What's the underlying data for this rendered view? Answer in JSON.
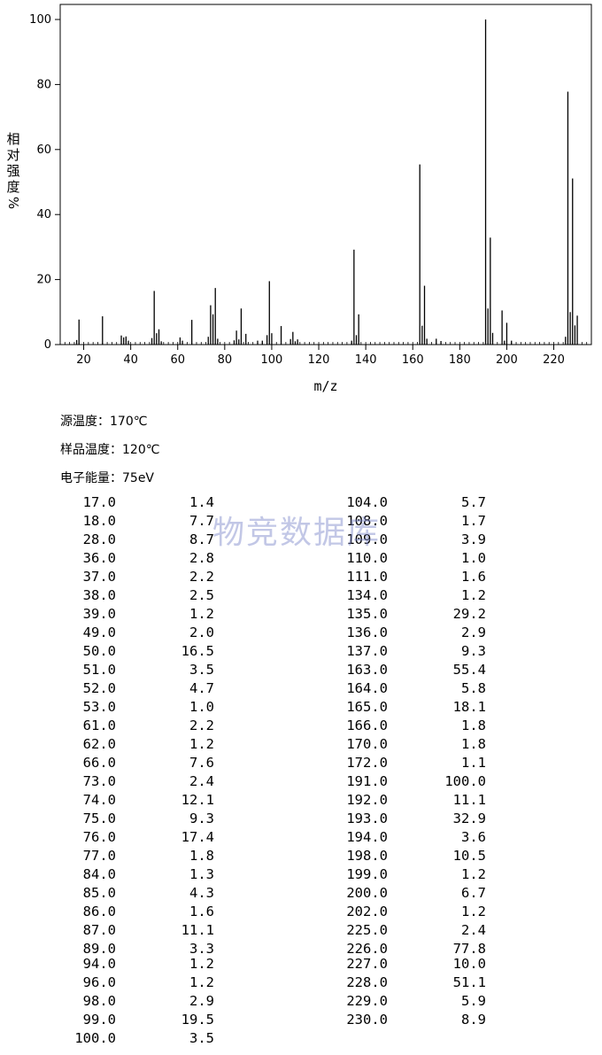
{
  "chart_data": {
    "type": "bar",
    "xlabel": "m/z",
    "ylabel": "相对强度/%",
    "ylabel_chars": [
      "相",
      "对",
      "强",
      "度",
      "%"
    ],
    "xlim": [
      10,
      236
    ],
    "ylim": [
      0,
      100
    ],
    "xticks": [
      20,
      40,
      60,
      80,
      100,
      120,
      140,
      160,
      180,
      200,
      220
    ],
    "yticks": [
      0,
      20,
      40,
      60,
      80,
      100
    ],
    "grid": false,
    "peaks": [
      {
        "mz": 17.0,
        "intensity": 1.4
      },
      {
        "mz": 18.0,
        "intensity": 7.7
      },
      {
        "mz": 28.0,
        "intensity": 8.7
      },
      {
        "mz": 36.0,
        "intensity": 2.8
      },
      {
        "mz": 37.0,
        "intensity": 2.2
      },
      {
        "mz": 38.0,
        "intensity": 2.5
      },
      {
        "mz": 39.0,
        "intensity": 1.2
      },
      {
        "mz": 49.0,
        "intensity": 2.0
      },
      {
        "mz": 50.0,
        "intensity": 16.5
      },
      {
        "mz": 51.0,
        "intensity": 3.5
      },
      {
        "mz": 52.0,
        "intensity": 4.7
      },
      {
        "mz": 53.0,
        "intensity": 1.0
      },
      {
        "mz": 61.0,
        "intensity": 2.2
      },
      {
        "mz": 62.0,
        "intensity": 1.2
      },
      {
        "mz": 66.0,
        "intensity": 7.6
      },
      {
        "mz": 73.0,
        "intensity": 2.4
      },
      {
        "mz": 74.0,
        "intensity": 12.1
      },
      {
        "mz": 75.0,
        "intensity": 9.3
      },
      {
        "mz": 76.0,
        "intensity": 17.4
      },
      {
        "mz": 77.0,
        "intensity": 1.8
      },
      {
        "mz": 84.0,
        "intensity": 1.3
      },
      {
        "mz": 85.0,
        "intensity": 4.3
      },
      {
        "mz": 86.0,
        "intensity": 1.6
      },
      {
        "mz": 87.0,
        "intensity": 11.1
      },
      {
        "mz": 89.0,
        "intensity": 3.3
      },
      {
        "mz": 94.0,
        "intensity": 1.2
      },
      {
        "mz": 96.0,
        "intensity": 1.2
      },
      {
        "mz": 98.0,
        "intensity": 2.9
      },
      {
        "mz": 99.0,
        "intensity": 19.5
      },
      {
        "mz": 100.0,
        "intensity": 3.5
      },
      {
        "mz": 104.0,
        "intensity": 5.7
      },
      {
        "mz": 108.0,
        "intensity": 1.7
      },
      {
        "mz": 109.0,
        "intensity": 3.9
      },
      {
        "mz": 110.0,
        "intensity": 1.0
      },
      {
        "mz": 111.0,
        "intensity": 1.6
      },
      {
        "mz": 134.0,
        "intensity": 1.2
      },
      {
        "mz": 135.0,
        "intensity": 29.2
      },
      {
        "mz": 136.0,
        "intensity": 2.9
      },
      {
        "mz": 137.0,
        "intensity": 9.3
      },
      {
        "mz": 163.0,
        "intensity": 55.4
      },
      {
        "mz": 164.0,
        "intensity": 5.8
      },
      {
        "mz": 165.0,
        "intensity": 18.1
      },
      {
        "mz": 166.0,
        "intensity": 1.8
      },
      {
        "mz": 170.0,
        "intensity": 1.8
      },
      {
        "mz": 172.0,
        "intensity": 1.1
      },
      {
        "mz": 191.0,
        "intensity": 100.0
      },
      {
        "mz": 192.0,
        "intensity": 11.1
      },
      {
        "mz": 193.0,
        "intensity": 32.9
      },
      {
        "mz": 194.0,
        "intensity": 3.6
      },
      {
        "mz": 198.0,
        "intensity": 10.5
      },
      {
        "mz": 199.0,
        "intensity": 1.2
      },
      {
        "mz": 200.0,
        "intensity": 6.7
      },
      {
        "mz": 202.0,
        "intensity": 1.2
      },
      {
        "mz": 225.0,
        "intensity": 2.4
      },
      {
        "mz": 226.0,
        "intensity": 77.8
      },
      {
        "mz": 227.0,
        "intensity": 10.0
      },
      {
        "mz": 228.0,
        "intensity": 51.1
      },
      {
        "mz": 229.0,
        "intensity": 5.9
      },
      {
        "mz": 230.0,
        "intensity": 8.9
      }
    ],
    "table_left": [
      [
        "17.0",
        "1.4"
      ],
      [
        "18.0",
        "7.7"
      ],
      [
        "28.0",
        "8.7"
      ],
      [
        "36.0",
        "2.8"
      ],
      [
        "37.0",
        "2.2"
      ],
      [
        "38.0",
        "2.5"
      ],
      [
        "39.0",
        "1.2"
      ],
      [
        "49.0",
        "2.0"
      ],
      [
        "50.0",
        "16.5"
      ],
      [
        "51.0",
        "3.5"
      ],
      [
        "52.0",
        "4.7"
      ],
      [
        "53.0",
        "1.0"
      ],
      [
        "61.0",
        "2.2"
      ],
      [
        "62.0",
        "1.2"
      ],
      [
        "66.0",
        "7.6"
      ],
      [
        "73.0",
        "2.4"
      ],
      [
        "74.0",
        "12.1"
      ],
      [
        "75.0",
        "9.3"
      ],
      [
        "76.0",
        "17.4"
      ],
      [
        "77.0",
        "1.8"
      ],
      [
        "84.0",
        "1.3"
      ],
      [
        "85.0",
        "4.3"
      ],
      [
        "86.0",
        "1.6"
      ],
      [
        "87.0",
        "11.1"
      ],
      [
        "89.0",
        "3.3"
      ],
      [
        "94.0",
        "1.2"
      ],
      [
        "96.0",
        "1.2"
      ],
      [
        "98.0",
        "2.9"
      ],
      [
        "99.0",
        "19.5"
      ],
      [
        "100.0",
        "3.5"
      ]
    ],
    "table_right": [
      [
        "104.0",
        "5.7"
      ],
      [
        "108.0",
        "1.7"
      ],
      [
        "109.0",
        "3.9"
      ],
      [
        "110.0",
        "1.0"
      ],
      [
        "111.0",
        "1.6"
      ],
      [
        "134.0",
        "1.2"
      ],
      [
        "135.0",
        "29.2"
      ],
      [
        "136.0",
        "2.9"
      ],
      [
        "137.0",
        "9.3"
      ],
      [
        "163.0",
        "55.4"
      ],
      [
        "164.0",
        "5.8"
      ],
      [
        "165.0",
        "18.1"
      ],
      [
        "166.0",
        "1.8"
      ],
      [
        "170.0",
        "1.8"
      ],
      [
        "172.0",
        "1.1"
      ],
      [
        "191.0",
        "100.0"
      ],
      [
        "192.0",
        "11.1"
      ],
      [
        "193.0",
        "32.9"
      ],
      [
        "194.0",
        "3.6"
      ],
      [
        "198.0",
        "10.5"
      ],
      [
        "199.0",
        "1.2"
      ],
      [
        "200.0",
        "6.7"
      ],
      [
        "202.0",
        "1.2"
      ],
      [
        "225.0",
        "2.4"
      ],
      [
        "226.0",
        "77.8"
      ],
      [
        "227.0",
        "10.0"
      ],
      [
        "228.0",
        "51.1"
      ],
      [
        "229.0",
        "5.9"
      ],
      [
        "230.0",
        "8.9"
      ]
    ]
  },
  "conditions": {
    "source_temp": "源温度：170℃",
    "sample_temp": "样品温度：120℃",
    "electron_energy": "电子能量：75eV"
  },
  "watermark": "物竞数据库",
  "colors": {
    "bars": "#000000",
    "axes": "#000000",
    "watermark": "#7882c8"
  }
}
